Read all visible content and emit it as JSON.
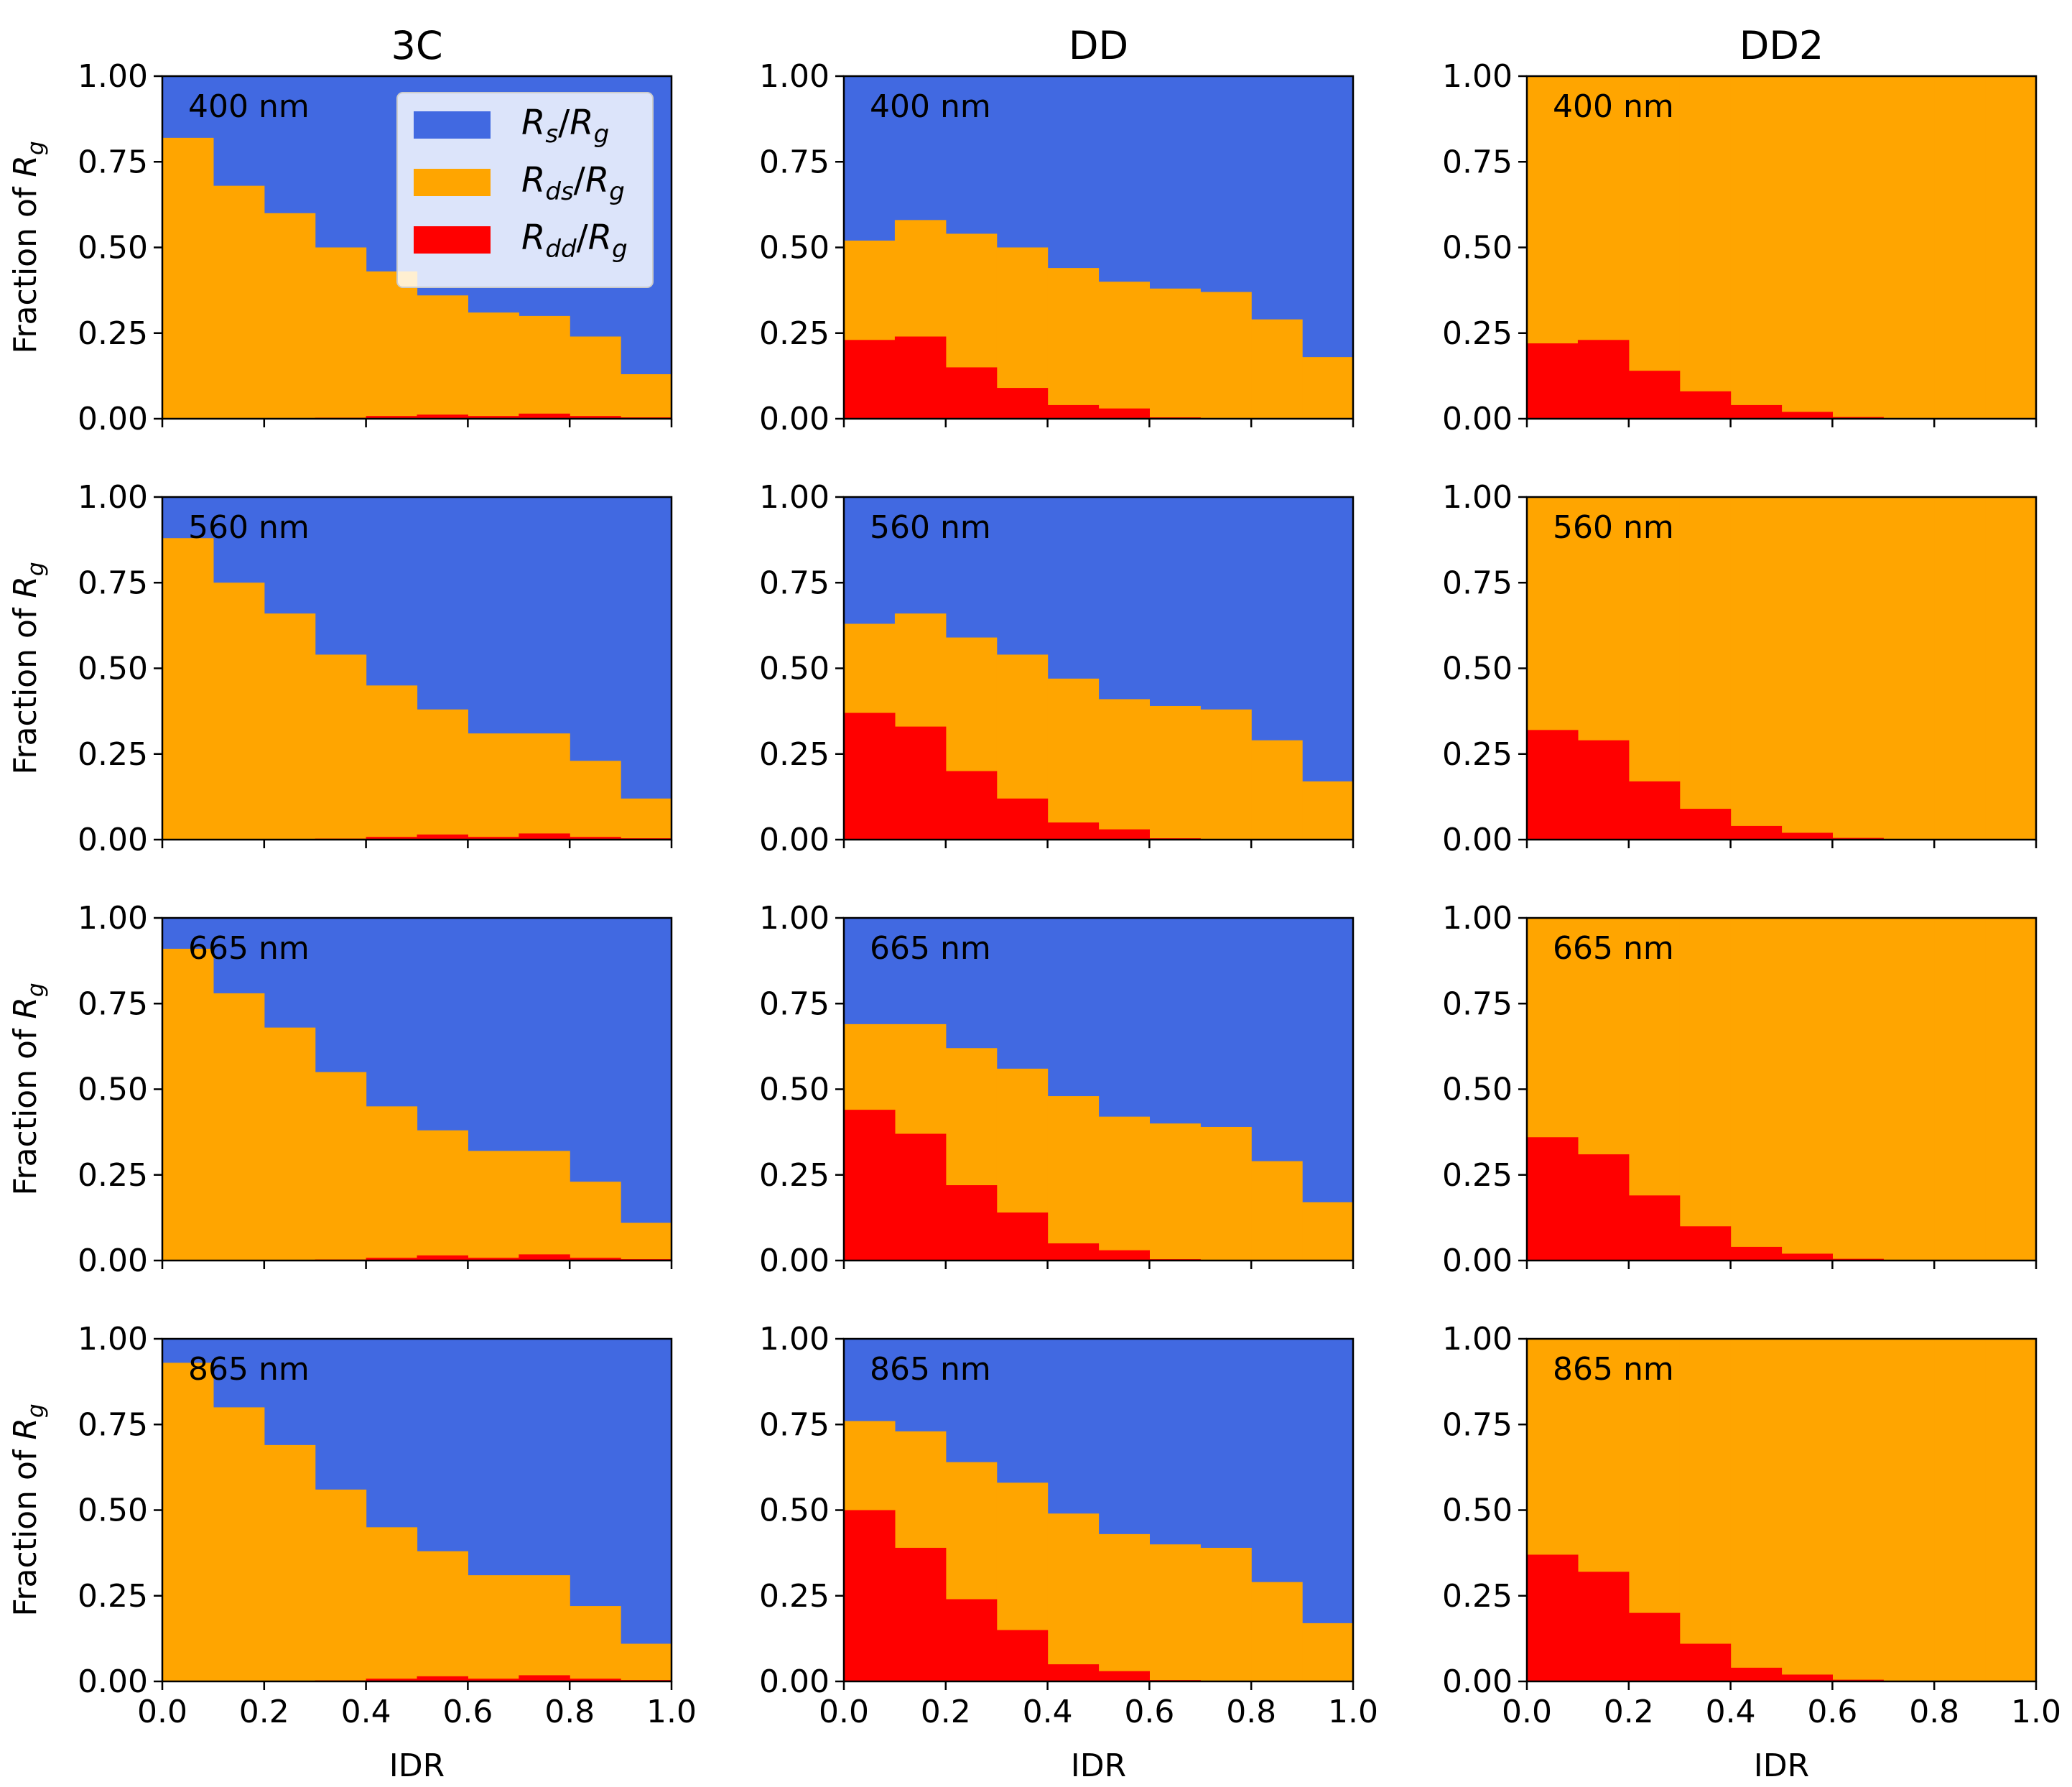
{
  "colors": {
    "rs": "#4169e1",
    "rds": "#ffa500",
    "rdd": "#ff0000"
  },
  "chart_data": {
    "type": "bar",
    "layout": "grid 4 rows x 3 columns",
    "column_titles": [
      "3C",
      "DD",
      "DD2"
    ],
    "row_labels": [
      "400 nm",
      "560 nm",
      "665 nm",
      "865 nm"
    ],
    "xlabel": "IDR",
    "ylabel": "Fraction of R_g",
    "ylabel_parts": {
      "main": "Fraction of ",
      "var": "R",
      "sub": "g"
    },
    "xlim": [
      0,
      1
    ],
    "ylim": [
      0,
      1
    ],
    "xticks": [
      "0.0",
      "0.2",
      "0.4",
      "0.6",
      "0.8",
      "1.0"
    ],
    "yticks": [
      "0.00",
      "0.25",
      "0.50",
      "0.75",
      "1.00"
    ],
    "bin_edges": [
      0,
      0.1,
      0.2,
      0.3,
      0.4,
      0.5,
      0.6,
      0.7,
      0.8,
      0.9,
      1.0
    ],
    "stacking": "stacked to 1.0 per bin: Rdd/Rg bottom, Rds/Rg middle, Rs/Rg top",
    "legend": {
      "location": "upper right of top-left panel",
      "entries": [
        {
          "key": "rs",
          "label": "R_s/R_g",
          "num": "R",
          "num_sub": "s",
          "den": "R",
          "den_sub": "g"
        },
        {
          "key": "rds",
          "label": "R_ds/R_g",
          "num": "R",
          "num_sub": "ds",
          "den": "R",
          "den_sub": "g"
        },
        {
          "key": "rdd",
          "label": "R_dd/R_g",
          "num": "R",
          "num_sub": "dd",
          "den": "R",
          "den_sub": "g"
        }
      ]
    },
    "panels": [
      {
        "column": "3C",
        "wavelength": "400 nm",
        "rds_plus_rdd": [
          0.82,
          0.68,
          0.6,
          0.5,
          0.43,
          0.36,
          0.31,
          0.3,
          0.24,
          0.13
        ],
        "rdd": [
          0.0,
          0.0,
          0.002,
          0.003,
          0.008,
          0.012,
          0.008,
          0.015,
          0.008,
          0.004
        ]
      },
      {
        "column": "DD",
        "wavelength": "400 nm",
        "rds_plus_rdd": [
          0.52,
          0.58,
          0.54,
          0.5,
          0.44,
          0.4,
          0.38,
          0.37,
          0.29,
          0.18
        ],
        "rdd": [
          0.23,
          0.24,
          0.15,
          0.09,
          0.04,
          0.03,
          0.004,
          0.0,
          0.0,
          0.0
        ]
      },
      {
        "column": "DD2",
        "wavelength": "400 nm",
        "rds_plus_rdd": [
          1.0,
          1.0,
          1.0,
          1.0,
          1.0,
          1.0,
          1.0,
          1.0,
          1.0,
          1.0
        ],
        "rdd": [
          0.22,
          0.23,
          0.14,
          0.08,
          0.04,
          0.02,
          0.005,
          0.0,
          0.0,
          0.0
        ]
      },
      {
        "column": "3C",
        "wavelength": "560 nm",
        "rds_plus_rdd": [
          0.88,
          0.75,
          0.66,
          0.54,
          0.45,
          0.38,
          0.31,
          0.31,
          0.23,
          0.12
        ],
        "rdd": [
          0.0,
          0.0,
          0.002,
          0.003,
          0.008,
          0.015,
          0.008,
          0.018,
          0.008,
          0.004
        ]
      },
      {
        "column": "DD",
        "wavelength": "560 nm",
        "rds_plus_rdd": [
          0.63,
          0.66,
          0.59,
          0.54,
          0.47,
          0.41,
          0.39,
          0.38,
          0.29,
          0.17
        ],
        "rdd": [
          0.37,
          0.33,
          0.2,
          0.12,
          0.05,
          0.03,
          0.004,
          0.0,
          0.0,
          0.0
        ]
      },
      {
        "column": "DD2",
        "wavelength": "560 nm",
        "rds_plus_rdd": [
          1.0,
          1.0,
          1.0,
          1.0,
          1.0,
          1.0,
          1.0,
          1.0,
          1.0,
          1.0
        ],
        "rdd": [
          0.32,
          0.29,
          0.17,
          0.09,
          0.04,
          0.02,
          0.005,
          0.0,
          0.0,
          0.0
        ]
      },
      {
        "column": "3C",
        "wavelength": "665 nm",
        "rds_plus_rdd": [
          0.91,
          0.78,
          0.68,
          0.55,
          0.45,
          0.38,
          0.32,
          0.32,
          0.23,
          0.11
        ],
        "rdd": [
          0.0,
          0.0,
          0.002,
          0.003,
          0.008,
          0.015,
          0.008,
          0.018,
          0.008,
          0.004
        ]
      },
      {
        "column": "DD",
        "wavelength": "665 nm",
        "rds_plus_rdd": [
          0.69,
          0.69,
          0.62,
          0.56,
          0.48,
          0.42,
          0.4,
          0.39,
          0.29,
          0.17
        ],
        "rdd": [
          0.44,
          0.37,
          0.22,
          0.14,
          0.05,
          0.03,
          0.004,
          0.0,
          0.0,
          0.0
        ]
      },
      {
        "column": "DD2",
        "wavelength": "665 nm",
        "rds_plus_rdd": [
          1.0,
          1.0,
          1.0,
          1.0,
          1.0,
          1.0,
          1.0,
          1.0,
          1.0,
          1.0
        ],
        "rdd": [
          0.36,
          0.31,
          0.19,
          0.1,
          0.04,
          0.02,
          0.005,
          0.0,
          0.0,
          0.0
        ]
      },
      {
        "column": "3C",
        "wavelength": "865 nm",
        "rds_plus_rdd": [
          0.93,
          0.8,
          0.69,
          0.56,
          0.45,
          0.38,
          0.31,
          0.31,
          0.22,
          0.11
        ],
        "rdd": [
          0.0,
          0.0,
          0.002,
          0.003,
          0.008,
          0.015,
          0.008,
          0.018,
          0.008,
          0.004
        ]
      },
      {
        "column": "DD",
        "wavelength": "865 nm",
        "rds_plus_rdd": [
          0.76,
          0.73,
          0.64,
          0.58,
          0.49,
          0.43,
          0.4,
          0.39,
          0.29,
          0.17
        ],
        "rdd": [
          0.5,
          0.39,
          0.24,
          0.15,
          0.05,
          0.03,
          0.004,
          0.0,
          0.0,
          0.0
        ]
      },
      {
        "column": "DD2",
        "wavelength": "865 nm",
        "rds_plus_rdd": [
          1.0,
          1.0,
          1.0,
          1.0,
          1.0,
          1.0,
          1.0,
          1.0,
          1.0,
          1.0
        ],
        "rdd": [
          0.37,
          0.32,
          0.2,
          0.11,
          0.04,
          0.02,
          0.005,
          0.0,
          0.0,
          0.0
        ]
      }
    ]
  }
}
